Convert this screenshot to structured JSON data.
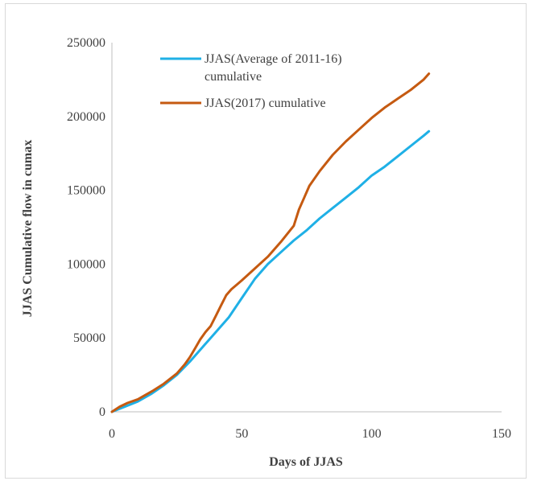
{
  "chart_data": {
    "type": "line",
    "title": "",
    "xlabel": "Days of JJAS",
    "ylabel": "JJAS Cumulative  flow in cumax",
    "xlim": [
      0,
      150
    ],
    "ylim": [
      0,
      250000
    ],
    "xticks": [
      0,
      50,
      100,
      150
    ],
    "yticks": [
      0,
      50000,
      100000,
      150000,
      200000,
      250000
    ],
    "grid": false,
    "legend_position": "top-left",
    "series": [
      {
        "name": "JJAS(Average of 2011-16) cumulative",
        "color": "#1fb0e6",
        "x": [
          0,
          5,
          10,
          15,
          20,
          25,
          30,
          35,
          40,
          45,
          50,
          55,
          60,
          65,
          70,
          75,
          80,
          85,
          90,
          95,
          100,
          105,
          110,
          115,
          120,
          122
        ],
        "y": [
          0,
          3500,
          7000,
          12000,
          18000,
          25000,
          34000,
          44000,
          54000,
          64000,
          77000,
          90000,
          100000,
          108000,
          116000,
          123000,
          131000,
          138000,
          145000,
          152000,
          160000,
          166000,
          173000,
          180000,
          187000,
          190000
        ]
      },
      {
        "name": "JJAS(2017) cumulative",
        "color": "#c55a11",
        "x": [
          0,
          3,
          6,
          10,
          13,
          16,
          20,
          25,
          28,
          30,
          32,
          34,
          36,
          38,
          40,
          42,
          44,
          46,
          48,
          50,
          55,
          60,
          65,
          70,
          72,
          74,
          76,
          80,
          85,
          90,
          95,
          100,
          105,
          110,
          115,
          120,
          122
        ],
        "y": [
          0,
          3500,
          6000,
          8500,
          11500,
          14500,
          19000,
          26000,
          32000,
          37000,
          43000,
          49000,
          54000,
          58000,
          65000,
          72000,
          79000,
          83000,
          86000,
          89000,
          97000,
          105000,
          115000,
          126000,
          137000,
          145000,
          153000,
          163000,
          174000,
          183000,
          191000,
          199000,
          206000,
          212000,
          218000,
          225000,
          229000
        ]
      }
    ]
  }
}
